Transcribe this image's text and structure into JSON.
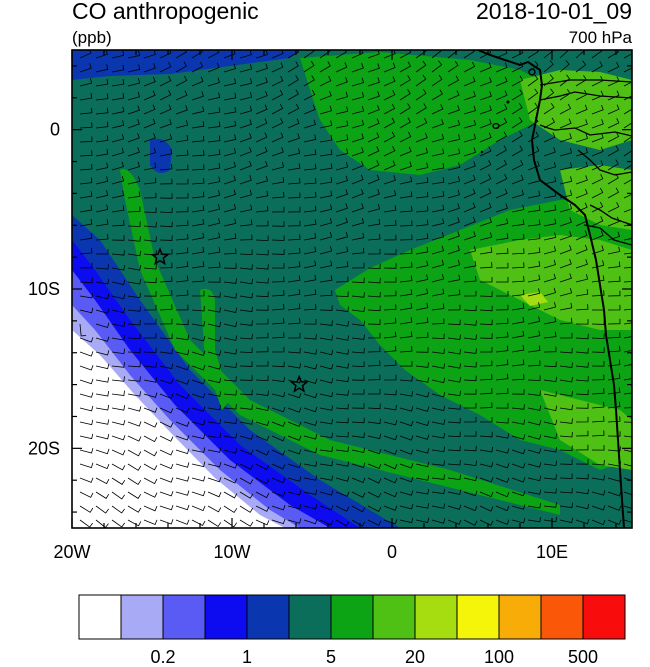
{
  "header": {
    "title": "CO anthropogenic",
    "units": "(ppb)",
    "timestamp": "2018-10-01_09",
    "level": "700 hPa"
  },
  "map": {
    "lon_range": [
      -20,
      15
    ],
    "lat_range": [
      -25,
      5
    ],
    "x_ticks": [
      {
        "lon": -20,
        "label": "20W"
      },
      {
        "lon": -10,
        "label": "10W"
      },
      {
        "lon": 0,
        "label": "0"
      },
      {
        "lon": 10,
        "label": "10E"
      }
    ],
    "y_ticks": [
      {
        "lat": 0,
        "label": "0"
      },
      {
        "lat": -10,
        "label": "10S"
      },
      {
        "lat": -20,
        "label": "20S"
      }
    ],
    "markers": [
      {
        "name": "star-marker-1",
        "lon": -14.5,
        "lat": -8
      },
      {
        "name": "star-marker-2",
        "lon": -5.8,
        "lat": -16
      }
    ]
  },
  "colorbar": {
    "colors": [
      "#ffffff",
      "#a9aaf5",
      "#5a5af5",
      "#0d0cf0",
      "#0a37b0",
      "#0a6e5a",
      "#0ca314",
      "#4ec114",
      "#a6dd10",
      "#f5f50a",
      "#f8ac08",
      "#fa5808",
      "#f80c0c"
    ],
    "labels": [
      {
        "after_box": 2,
        "text": "0.2"
      },
      {
        "after_box": 4,
        "text": "1"
      },
      {
        "after_box": 6,
        "text": "5"
      },
      {
        "after_box": 8,
        "text": "20"
      },
      {
        "after_box": 10,
        "text": "100"
      },
      {
        "after_box": 12,
        "text": "500"
      }
    ]
  }
}
